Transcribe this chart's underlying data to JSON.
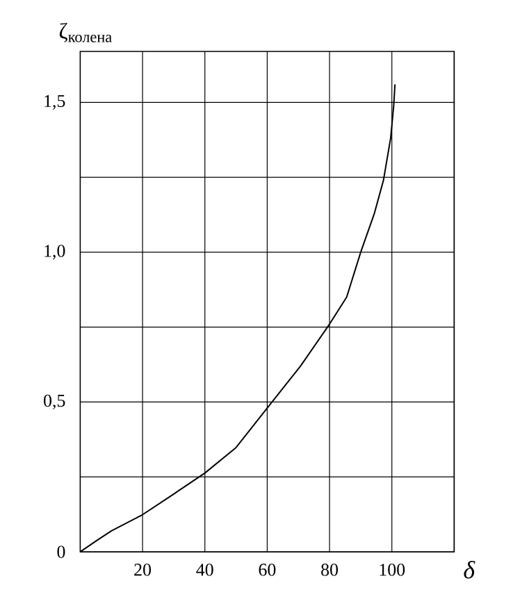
{
  "chart_data": {
    "type": "line",
    "ylabel": "ζ$_{колена}$",
    "xlabel": "δ",
    "x": [
      0,
      5.5,
      10,
      20,
      29,
      40,
      50,
      60,
      70.7,
      80,
      85.5,
      90,
      94.4,
      97.3,
      99.6,
      100.6,
      101
    ],
    "series": [
      {
        "color": "#000000",
        "values": [
          0,
          0.039,
          0.07,
          0.124,
          0.186,
          0.263,
          0.348,
          0.48,
          0.62,
          0.76,
          0.85,
          1.0,
          1.13,
          1.24,
          1.38,
          1.49,
          1.56
        ]
      }
    ],
    "xlim": [
      0,
      120
    ],
    "ylim": [
      0,
      1.67
    ],
    "xticks": [
      20,
      40,
      60,
      80,
      100,
      {
        "value": 120,
        "label": null
      }
    ],
    "yticks": [
      0,
      {
        "value": 0.25,
        "label": null
      },
      {
        "value": 0.5,
        "label": "0,5"
      },
      {
        "value": 0.75,
        "label": null
      },
      {
        "value": 1,
        "label": "1,0"
      },
      {
        "value": 1.25,
        "label": null
      },
      {
        "value": 1.5,
        "label": "1,5"
      }
    ],
    "grid": true,
    "marker": "none",
    "line_style": "solid"
  }
}
